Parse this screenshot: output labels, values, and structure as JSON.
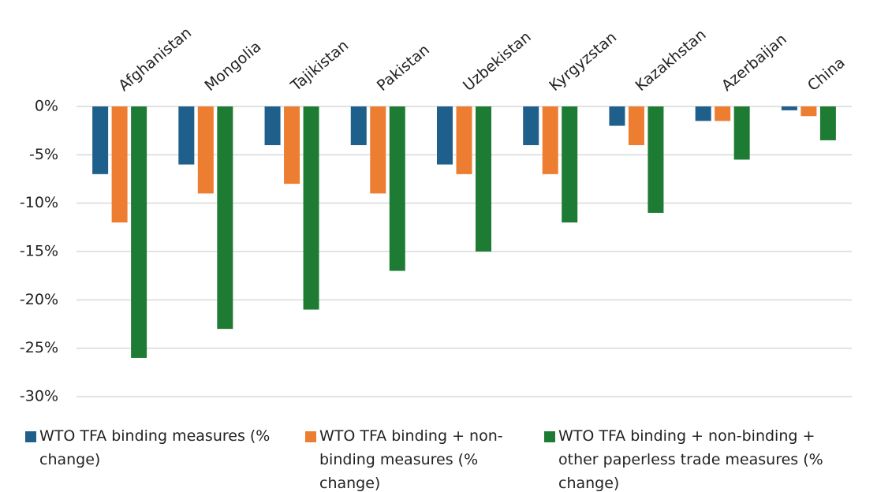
{
  "chart_data": {
    "type": "bar",
    "categories": [
      "Afghanistan",
      "Mongolia",
      "Tajikistan",
      "Pakistan",
      "Uzbekistan",
      "Kyrgyzstan",
      "Kazakhstan",
      "Azerbaijan",
      "China"
    ],
    "series": [
      {
        "name": "WTO TFA binding measures (% change)",
        "color": "#1f5f8b",
        "values": [
          -7,
          -6,
          -4,
          -4,
          -6,
          -4,
          -2,
          -1.5,
          -0.4
        ]
      },
      {
        "name": "WTO TFA binding + non-binding measures (% change)",
        "color": "#ed7d31",
        "values": [
          -12,
          -9,
          -8,
          -9,
          -7,
          -7,
          -4,
          -1.5,
          -1
        ]
      },
      {
        "name": "WTO TFA binding + non-binding + other paperless trade measures (% change)",
        "color": "#1e7b34",
        "values": [
          -26,
          -23,
          -21,
          -17,
          -15,
          -12,
          -11,
          -5.5,
          -3.5
        ]
      }
    ],
    "ylim": [
      -30,
      0
    ],
    "yticks": [
      {
        "value": 0,
        "label": "0%"
      },
      {
        "value": -5,
        "label": "-5%"
      },
      {
        "value": -10,
        "label": "-10%"
      },
      {
        "value": -15,
        "label": "-15%"
      },
      {
        "value": -20,
        "label": "-20%"
      },
      {
        "value": -25,
        "label": "-25%"
      },
      {
        "value": -30,
        "label": "-30%"
      }
    ],
    "grid": true,
    "legend": "bottom"
  }
}
